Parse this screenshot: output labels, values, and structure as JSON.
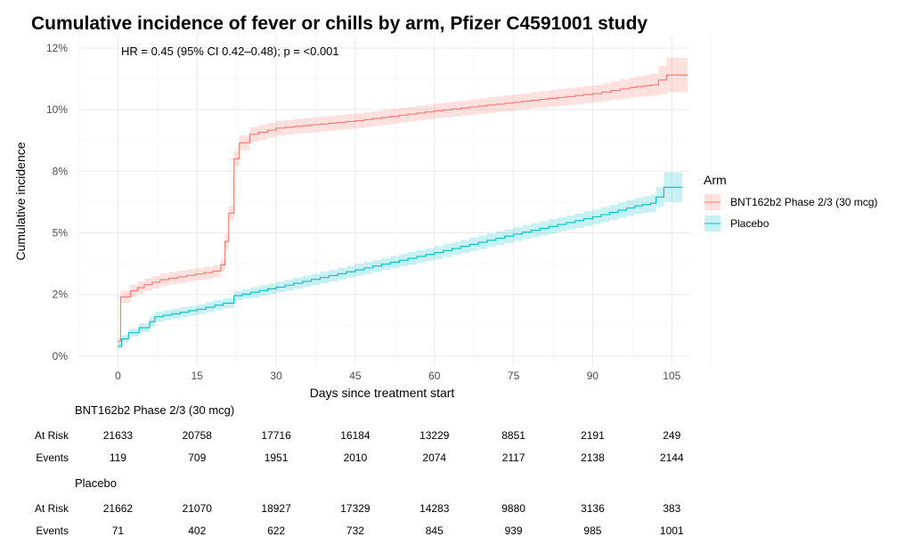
{
  "chart_data": {
    "type": "line",
    "title": "Cumulative incidence of fever or chills by arm, Pfizer C4591001 study",
    "xlabel": "Days since treatment start",
    "ylabel": "Cumulative incidence",
    "annotation": "HR = 0.45 (95% CI 0.42–0.48); p = <0.001",
    "xlim": [
      -7.5,
      108.5
    ],
    "ylim": [
      -0.4,
      13
    ],
    "x_ticks": [
      0,
      15,
      30,
      45,
      60,
      75,
      90,
      105
    ],
    "x_tick_labels": [
      "0",
      "15",
      "30",
      "45",
      "60",
      "75",
      "90",
      "105"
    ],
    "y_ticks": [
      0,
      2.5,
      5,
      7.5,
      10,
      12.5
    ],
    "y_tick_labels": [
      "0%",
      "2%",
      "5%",
      "8%",
      "10%",
      "12%"
    ],
    "grid": true,
    "legend": {
      "title": "Arm",
      "placement": "right"
    },
    "series": [
      {
        "name": "BNT162b2 Phase 2/3 (30 mcg)",
        "color": "#F8766D",
        "x": [
          0,
          0.5,
          2.4,
          5,
          8,
          18,
          19.5,
          20.3,
          21,
          22,
          23,
          25,
          30,
          45,
          60,
          75,
          90,
          97,
          101,
          104,
          108
        ],
        "y": [
          0.6,
          2.4,
          2.65,
          2.9,
          3.1,
          3.45,
          3.7,
          4.65,
          5.8,
          8.0,
          8.65,
          9.0,
          9.25,
          9.55,
          9.95,
          10.3,
          10.65,
          10.9,
          11.0,
          11.4,
          11.4
        ],
        "ci_halfwidth": [
          0.15,
          0.25,
          0.25,
          0.25,
          0.25,
          0.25,
          0.25,
          0.3,
          0.3,
          0.3,
          0.3,
          0.3,
          0.3,
          0.3,
          0.3,
          0.32,
          0.35,
          0.4,
          0.45,
          0.7,
          0.7
        ]
      },
      {
        "name": "Placebo",
        "color": "#00BFC4",
        "x": [
          0,
          0.7,
          2,
          4,
          6,
          7,
          15,
          20,
          22,
          30,
          45,
          60,
          75,
          90,
          98,
          101,
          102,
          103.5,
          107
        ],
        "y": [
          0.4,
          0.7,
          0.95,
          1.15,
          1.4,
          1.6,
          1.9,
          2.15,
          2.45,
          2.8,
          3.5,
          4.2,
          4.95,
          5.65,
          6.1,
          6.2,
          6.45,
          6.85,
          6.85
        ],
        "ci_halfwidth": [
          0.1,
          0.15,
          0.15,
          0.18,
          0.2,
          0.2,
          0.2,
          0.2,
          0.2,
          0.22,
          0.24,
          0.26,
          0.28,
          0.3,
          0.32,
          0.35,
          0.4,
          0.6,
          0.6
        ]
      }
    ]
  },
  "risk_table": {
    "row_labels": {
      "at_risk": "At Risk",
      "events": "Events"
    },
    "groups": [
      {
        "name": "BNT162b2 Phase 2/3 (30 mcg)",
        "at_risk": [
          "21633",
          "20758",
          "17716",
          "16184",
          "13229",
          "8851",
          "2191",
          "249"
        ],
        "events": [
          "119",
          "709",
          "1951",
          "2010",
          "2074",
          "2117",
          "2138",
          "2144"
        ]
      },
      {
        "name": "Placebo",
        "at_risk": [
          "21662",
          "21070",
          "18927",
          "17329",
          "14283",
          "9880",
          "3136",
          "383"
        ],
        "events": [
          "71",
          "402",
          "622",
          "732",
          "845",
          "939",
          "985",
          "1001"
        ]
      }
    ]
  }
}
